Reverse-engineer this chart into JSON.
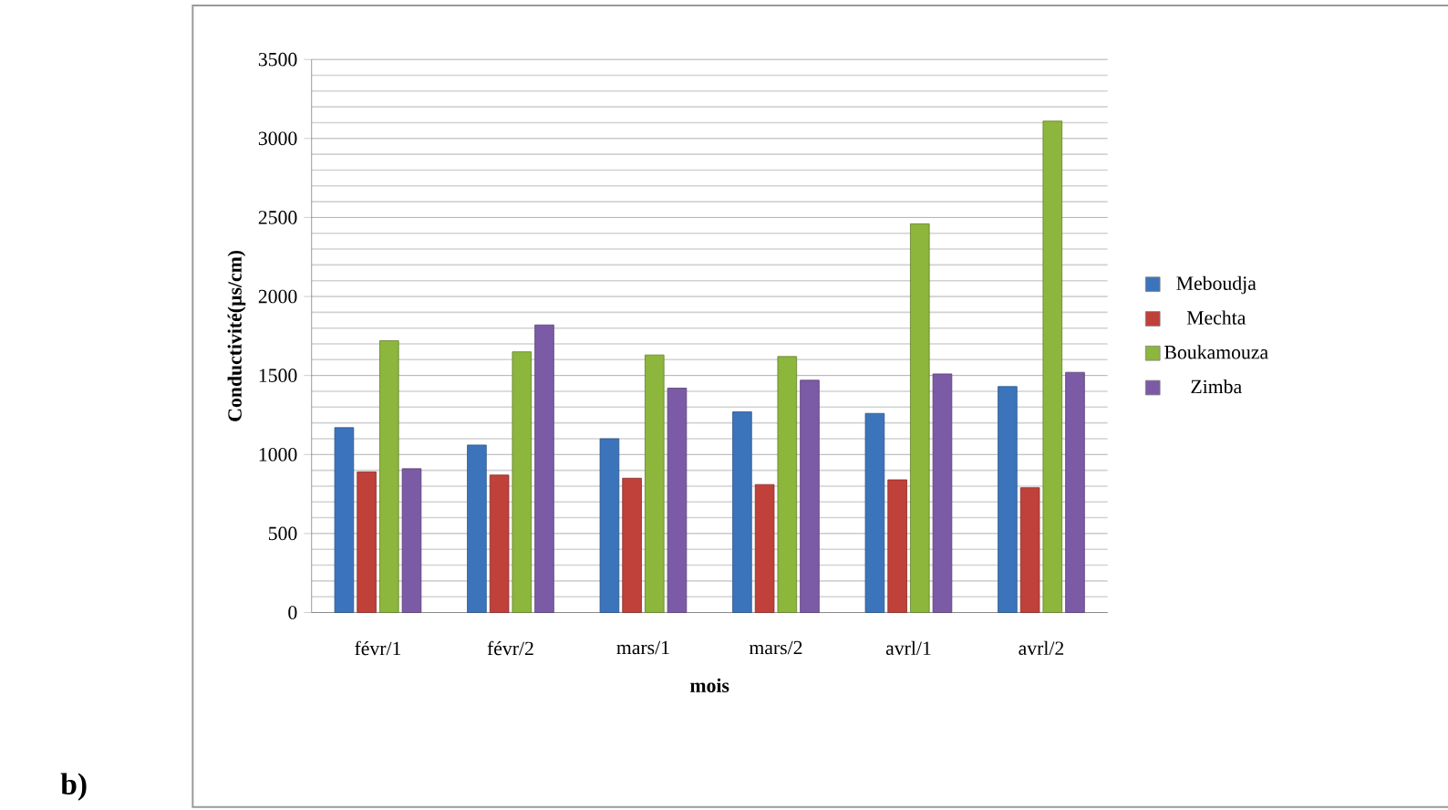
{
  "chart_data": {
    "type": "bar",
    "categories": [
      "févr/1",
      "févr/2",
      "mars/1",
      "mars/2",
      "avrl/1",
      "avrl/2"
    ],
    "series": [
      {
        "name": "Meboudja",
        "color": "#3c74bc",
        "values": [
          1170,
          1060,
          1100,
          1270,
          1260,
          1430
        ]
      },
      {
        "name": "Mechta",
        "color": "#c0403a",
        "values": [
          890,
          870,
          850,
          810,
          840,
          790
        ]
      },
      {
        "name": "Boukamouza",
        "color": "#8cb63c",
        "values": [
          1720,
          1650,
          1630,
          1620,
          2460,
          3110
        ]
      },
      {
        "name": "Zimba",
        "color": "#7b5aa6",
        "values": [
          910,
          1820,
          1420,
          1470,
          1510,
          1520
        ]
      }
    ],
    "xlabel": "mois",
    "ylabel": "Conductivité(µs/cm)",
    "ylim": [
      0,
      3500
    ],
    "yticks": [
      0,
      500,
      1000,
      1500,
      2000,
      2500,
      3000,
      3500
    ],
    "grid": "y",
    "legend": "right",
    "annotations": [
      "b)"
    ]
  }
}
